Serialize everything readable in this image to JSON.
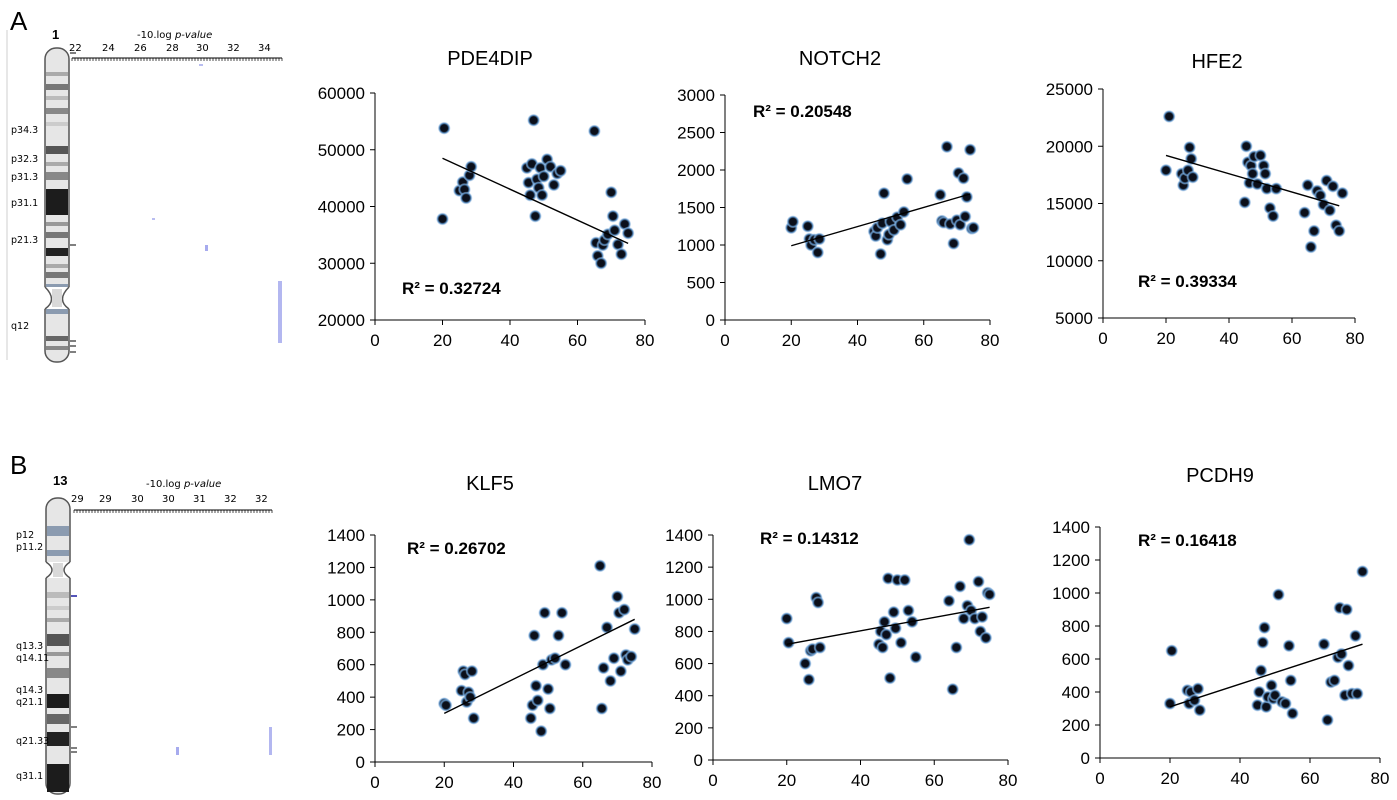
{
  "panel_labels": [
    "A",
    "B"
  ],
  "ideograms": [
    {
      "chromosome": "1",
      "axis_label": "-10.log",
      "axis_label_italic": "p-value",
      "ticks": [
        "22",
        "24",
        "26",
        "28",
        "30",
        "32",
        "34"
      ],
      "bands": [
        "p34.3",
        "p32.3",
        "p31.3",
        "p31.1",
        "p21.3",
        "q12"
      ]
    },
    {
      "chromosome": "13",
      "axis_label": "-10.log",
      "axis_label_italic": "p-value",
      "ticks": [
        "29",
        "29",
        "30",
        "30",
        "31",
        "32",
        "32"
      ],
      "bands": [
        "p12",
        "p11.2",
        "q13.3",
        "q14.11",
        "q14.3",
        "q21.1",
        "q21.33",
        "q31.1"
      ]
    }
  ],
  "chart_data": [
    {
      "type": "scatter",
      "title": "PDE4DIP",
      "r2_label": "R² = 0.32724",
      "xlim": [
        0,
        80
      ],
      "ylim": [
        20000,
        60000
      ],
      "xticks": [
        "0",
        "20",
        "40",
        "60",
        "80"
      ],
      "yticks": [
        "20000",
        "30000",
        "40000",
        "50000",
        "60000"
      ],
      "trendline": [
        [
          20,
          48500
        ],
        [
          75,
          33500
        ]
      ],
      "points": [
        [
          20,
          37800
        ],
        [
          20.5,
          53800
        ],
        [
          25,
          42800
        ],
        [
          26,
          44300
        ],
        [
          26.5,
          43000
        ],
        [
          27,
          41500
        ],
        [
          28,
          45500
        ],
        [
          28.5,
          47000
        ],
        [
          45,
          46800
        ],
        [
          45.5,
          44200
        ],
        [
          46,
          42000
        ],
        [
          46.5,
          47500
        ],
        [
          47,
          55200
        ],
        [
          47.5,
          38300
        ],
        [
          48,
          44800
        ],
        [
          48.5,
          43300
        ],
        [
          49,
          46800
        ],
        [
          49.5,
          42000
        ],
        [
          50,
          45300
        ],
        [
          51,
          48300
        ],
        [
          52,
          47000
        ],
        [
          53,
          43800
        ],
        [
          54,
          45800
        ],
        [
          55,
          46300
        ],
        [
          65,
          53300
        ],
        [
          65.5,
          33600
        ],
        [
          66,
          31300
        ],
        [
          67,
          30000
        ],
        [
          67.5,
          33200
        ],
        [
          68,
          34100
        ],
        [
          69,
          35100
        ],
        [
          70,
          42500
        ],
        [
          70.5,
          38300
        ],
        [
          71,
          35800
        ],
        [
          72,
          33300
        ],
        [
          73,
          31600
        ],
        [
          74,
          36900
        ],
        [
          75,
          35300
        ]
      ]
    },
    {
      "type": "scatter",
      "title": "NOTCH2",
      "r2_label": "R² = 0.20548",
      "xlim": [
        0,
        80
      ],
      "ylim": [
        0,
        3000
      ],
      "xticks": [
        "0",
        "20",
        "40",
        "60",
        "80"
      ],
      "yticks": [
        "0",
        "500",
        "1000",
        "1500",
        "2000",
        "2500",
        "3000"
      ],
      "trendline": [
        [
          20,
          990
        ],
        [
          74,
          1680
        ]
      ],
      "points": [
        [
          20,
          1230
        ],
        [
          20.5,
          1310
        ],
        [
          25,
          1250
        ],
        [
          25.5,
          1080
        ],
        [
          26,
          1000
        ],
        [
          27,
          1070
        ],
        [
          28,
          900
        ],
        [
          28.5,
          1080
        ],
        [
          45,
          1180
        ],
        [
          45.5,
          1120
        ],
        [
          46,
          1230
        ],
        [
          47,
          880
        ],
        [
          47.5,
          1290
        ],
        [
          48,
          1690
        ],
        [
          49,
          1070
        ],
        [
          49.5,
          1140
        ],
        [
          50,
          1310
        ],
        [
          51,
          1200
        ],
        [
          52,
          1370
        ],
        [
          53,
          1270
        ],
        [
          54,
          1440
        ],
        [
          55,
          1880
        ],
        [
          65,
          1670
        ],
        [
          65.5,
          1320
        ],
        [
          66,
          1300
        ],
        [
          67,
          2310
        ],
        [
          68,
          1280
        ],
        [
          69,
          1020
        ],
        [
          70,
          1330
        ],
        [
          70.5,
          1960
        ],
        [
          71,
          1270
        ],
        [
          72,
          1890
        ],
        [
          72.5,
          1380
        ],
        [
          73,
          1640
        ],
        [
          74,
          2270
        ],
        [
          74.5,
          1220
        ],
        [
          75,
          1230
        ]
      ]
    },
    {
      "type": "scatter",
      "title": "HFE2",
      "r2_label": "R² = 0.39334",
      "xlim": [
        0,
        80
      ],
      "ylim": [
        5000,
        25000
      ],
      "xticks": [
        "0",
        "20",
        "40",
        "60",
        "80"
      ],
      "yticks": [
        "5000",
        "10000",
        "15000",
        "20000",
        "25000"
      ],
      "trendline": [
        [
          20,
          19200
        ],
        [
          75,
          14800
        ]
      ],
      "points": [
        [
          20,
          17900
        ],
        [
          21,
          22600
        ],
        [
          25,
          17600
        ],
        [
          25.5,
          16600
        ],
        [
          26,
          17200
        ],
        [
          27,
          17900
        ],
        [
          27.5,
          19900
        ],
        [
          28,
          18900
        ],
        [
          28.5,
          17300
        ],
        [
          45,
          15100
        ],
        [
          45.5,
          20000
        ],
        [
          46,
          18600
        ],
        [
          46.5,
          16800
        ],
        [
          47,
          18300
        ],
        [
          47.5,
          17600
        ],
        [
          48,
          19100
        ],
        [
          49,
          16700
        ],
        [
          50,
          19200
        ],
        [
          51,
          18300
        ],
        [
          51.5,
          17600
        ],
        [
          52,
          16300
        ],
        [
          53,
          14600
        ],
        [
          54,
          13900
        ],
        [
          55,
          16300
        ],
        [
          64,
          14200
        ],
        [
          65,
          16600
        ],
        [
          66,
          11200
        ],
        [
          67,
          12600
        ],
        [
          68,
          16100
        ],
        [
          69,
          15700
        ],
        [
          70,
          14900
        ],
        [
          71,
          17000
        ],
        [
          72,
          14400
        ],
        [
          73,
          16500
        ],
        [
          74,
          13100
        ],
        [
          75,
          12600
        ],
        [
          76,
          15900
        ]
      ]
    },
    {
      "type": "scatter",
      "title": "KLF5",
      "r2_label": "R² = 0.26702",
      "xlim": [
        0,
        80
      ],
      "ylim": [
        0,
        1400
      ],
      "xticks": [
        "0",
        "20",
        "40",
        "60",
        "80"
      ],
      "yticks": [
        "0",
        "200",
        "400",
        "600",
        "800",
        "1000",
        "1200",
        "1400"
      ],
      "trendline": [
        [
          20,
          300
        ],
        [
          75,
          880
        ]
      ],
      "points": [
        [
          20,
          360
        ],
        [
          20.5,
          350
        ],
        [
          25,
          440
        ],
        [
          25.5,
          560
        ],
        [
          26,
          540
        ],
        [
          26.5,
          370
        ],
        [
          27,
          430
        ],
        [
          27.5,
          400
        ],
        [
          28,
          560
        ],
        [
          28.5,
          270
        ],
        [
          45,
          270
        ],
        [
          45.5,
          350
        ],
        [
          46,
          780
        ],
        [
          46.5,
          470
        ],
        [
          47,
          380
        ],
        [
          48,
          190
        ],
        [
          48.5,
          600
        ],
        [
          49,
          920
        ],
        [
          50,
          450
        ],
        [
          50.5,
          330
        ],
        [
          51,
          630
        ],
        [
          52,
          640
        ],
        [
          53,
          780
        ],
        [
          54,
          920
        ],
        [
          55,
          600
        ],
        [
          65,
          1210
        ],
        [
          65.5,
          330
        ],
        [
          66,
          580
        ],
        [
          67,
          830
        ],
        [
          68,
          500
        ],
        [
          69,
          640
        ],
        [
          70,
          1020
        ],
        [
          70.5,
          920
        ],
        [
          71,
          560
        ],
        [
          72,
          940
        ],
        [
          72.5,
          660
        ],
        [
          73,
          630
        ],
        [
          74,
          650
        ],
        [
          75,
          820
        ]
      ]
    },
    {
      "type": "scatter",
      "title": "LMO7",
      "r2_label": "R² = 0.14312",
      "xlim": [
        0,
        80
      ],
      "ylim": [
        0,
        1400
      ],
      "xticks": [
        "0",
        "20",
        "40",
        "60",
        "80"
      ],
      "yticks": [
        "0",
        "200",
        "400",
        "600",
        "800",
        "1000",
        "1200",
        "1400"
      ],
      "trendline": [
        [
          20,
          720
        ],
        [
          75,
          950
        ]
      ],
      "points": [
        [
          20,
          880
        ],
        [
          20.5,
          730
        ],
        [
          25,
          600
        ],
        [
          26,
          500
        ],
        [
          26.5,
          680
        ],
        [
          27,
          690
        ],
        [
          28,
          1010
        ],
        [
          28.5,
          980
        ],
        [
          29,
          700
        ],
        [
          45,
          720
        ],
        [
          45.5,
          800
        ],
        [
          46,
          700
        ],
        [
          46.5,
          860
        ],
        [
          47,
          780
        ],
        [
          47.5,
          1130
        ],
        [
          48,
          510
        ],
        [
          49,
          920
        ],
        [
          49.5,
          820
        ],
        [
          50,
          1120
        ],
        [
          51,
          730
        ],
        [
          52,
          1120
        ],
        [
          53,
          930
        ],
        [
          54,
          860
        ],
        [
          55,
          640
        ],
        [
          64,
          990
        ],
        [
          65,
          440
        ],
        [
          66,
          700
        ],
        [
          67,
          1080
        ],
        [
          68,
          880
        ],
        [
          69,
          960
        ],
        [
          69.5,
          1370
        ],
        [
          70,
          930
        ],
        [
          71,
          880
        ],
        [
          72,
          1110
        ],
        [
          72.5,
          800
        ],
        [
          73,
          890
        ],
        [
          74,
          760
        ],
        [
          74.5,
          1040
        ],
        [
          75,
          1030
        ]
      ]
    },
    {
      "type": "scatter",
      "title": "PCDH9",
      "r2_label": "R² = 0.16418",
      "xlim": [
        0,
        80
      ],
      "ylim": [
        0,
        1400
      ],
      "xticks": [
        "0",
        "20",
        "40",
        "60",
        "80"
      ],
      "yticks": [
        "0",
        "200",
        "400",
        "600",
        "800",
        "1000",
        "1200",
        "1400"
      ],
      "trendline": [
        [
          20,
          310
        ],
        [
          75,
          690
        ]
      ],
      "points": [
        [
          20,
          330
        ],
        [
          20.5,
          650
        ],
        [
          25,
          410
        ],
        [
          25.5,
          330
        ],
        [
          26,
          400
        ],
        [
          27,
          350
        ],
        [
          28,
          420
        ],
        [
          28.5,
          290
        ],
        [
          45,
          320
        ],
        [
          45.5,
          400
        ],
        [
          46,
          530
        ],
        [
          46.5,
          700
        ],
        [
          47,
          790
        ],
        [
          47.5,
          310
        ],
        [
          48,
          370
        ],
        [
          49,
          440
        ],
        [
          49.5,
          360
        ],
        [
          50,
          380
        ],
        [
          51,
          990
        ],
        [
          52,
          340
        ],
        [
          53,
          330
        ],
        [
          54,
          680
        ],
        [
          54.5,
          470
        ],
        [
          55,
          270
        ],
        [
          64,
          690
        ],
        [
          65,
          230
        ],
        [
          66,
          460
        ],
        [
          67,
          470
        ],
        [
          68,
          610
        ],
        [
          68.5,
          910
        ],
        [
          69,
          630
        ],
        [
          70,
          380
        ],
        [
          70.5,
          900
        ],
        [
          71,
          560
        ],
        [
          72,
          390
        ],
        [
          73,
          740
        ],
        [
          73.5,
          390
        ],
        [
          75,
          1130
        ]
      ]
    }
  ]
}
